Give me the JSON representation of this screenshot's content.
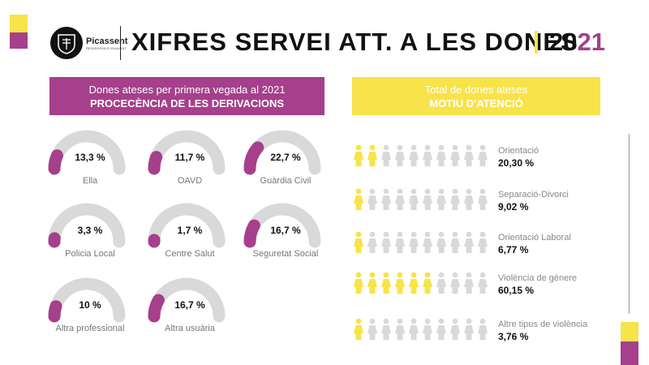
{
  "header": {
    "title": "XIFRES SERVEI ATT. A LES DONES",
    "year_prefix": "20",
    "year_suffix": "21",
    "logo_name": "Picassent",
    "logo_sub": "REGIDORIA D'IGUALTAT"
  },
  "colors": {
    "purple": "#a63f8c",
    "yellow": "#f7e34a",
    "gray": "#d9d9d9",
    "person_highlight": "#f7e34a",
    "person_base": "#d9d9d9"
  },
  "left_panel": {
    "banner_line1": "Dones ateses per primera vegada al 2021",
    "banner_line2": "PROCECÈNCIA DE LES DERIVACIONS"
  },
  "right_panel": {
    "banner_line1": "Total de dones ateses",
    "banner_line2": "MOTIU D'ATENCIÓ"
  },
  "chart_data": [
    {
      "type": "gauge",
      "title": "PROCECÈNCIA DE LES DERIVACIONS",
      "max_percent": 100,
      "items": [
        {
          "label": "Ella",
          "value": 13.3,
          "text": "13,3 %"
        },
        {
          "label": "OAVD",
          "value": 11.7,
          "text": "11,7 %"
        },
        {
          "label": "Guàrdia Civil",
          "value": 22.7,
          "text": "22,7 %"
        },
        {
          "label": "Policia Local",
          "value": 3.3,
          "text": "3,3 %"
        },
        {
          "label": "Centre Salut",
          "value": 1.7,
          "text": "1,7 %"
        },
        {
          "label": "Seguretat Social",
          "value": 16.7,
          "text": "16,7 %"
        },
        {
          "label": "Altra professional",
          "value": 10,
          "text": "10 %"
        },
        {
          "label": "Altra usuària",
          "value": 16.7,
          "text": "16,7 %"
        }
      ]
    },
    {
      "type": "pictograph",
      "title": "MOTIU D'ATENCIÓ",
      "icons_per_row": 10,
      "items": [
        {
          "label": "Orientació",
          "value": 20.3,
          "text": "20,30 %",
          "highlighted": 2
        },
        {
          "label": "Separació-Divorci",
          "value": 9.02,
          "text": "9,02 %",
          "highlighted": 1
        },
        {
          "label": "Orientació Laboral",
          "value": 6.77,
          "text": "6,77 %",
          "highlighted": 1
        },
        {
          "label": "Violència de gènere",
          "value": 60.15,
          "text": "60,15 %",
          "highlighted": 6
        },
        {
          "label": "Altre tipus de violència",
          "value": 3.76,
          "text": "3,76 %",
          "highlighted": 1
        }
      ]
    }
  ]
}
